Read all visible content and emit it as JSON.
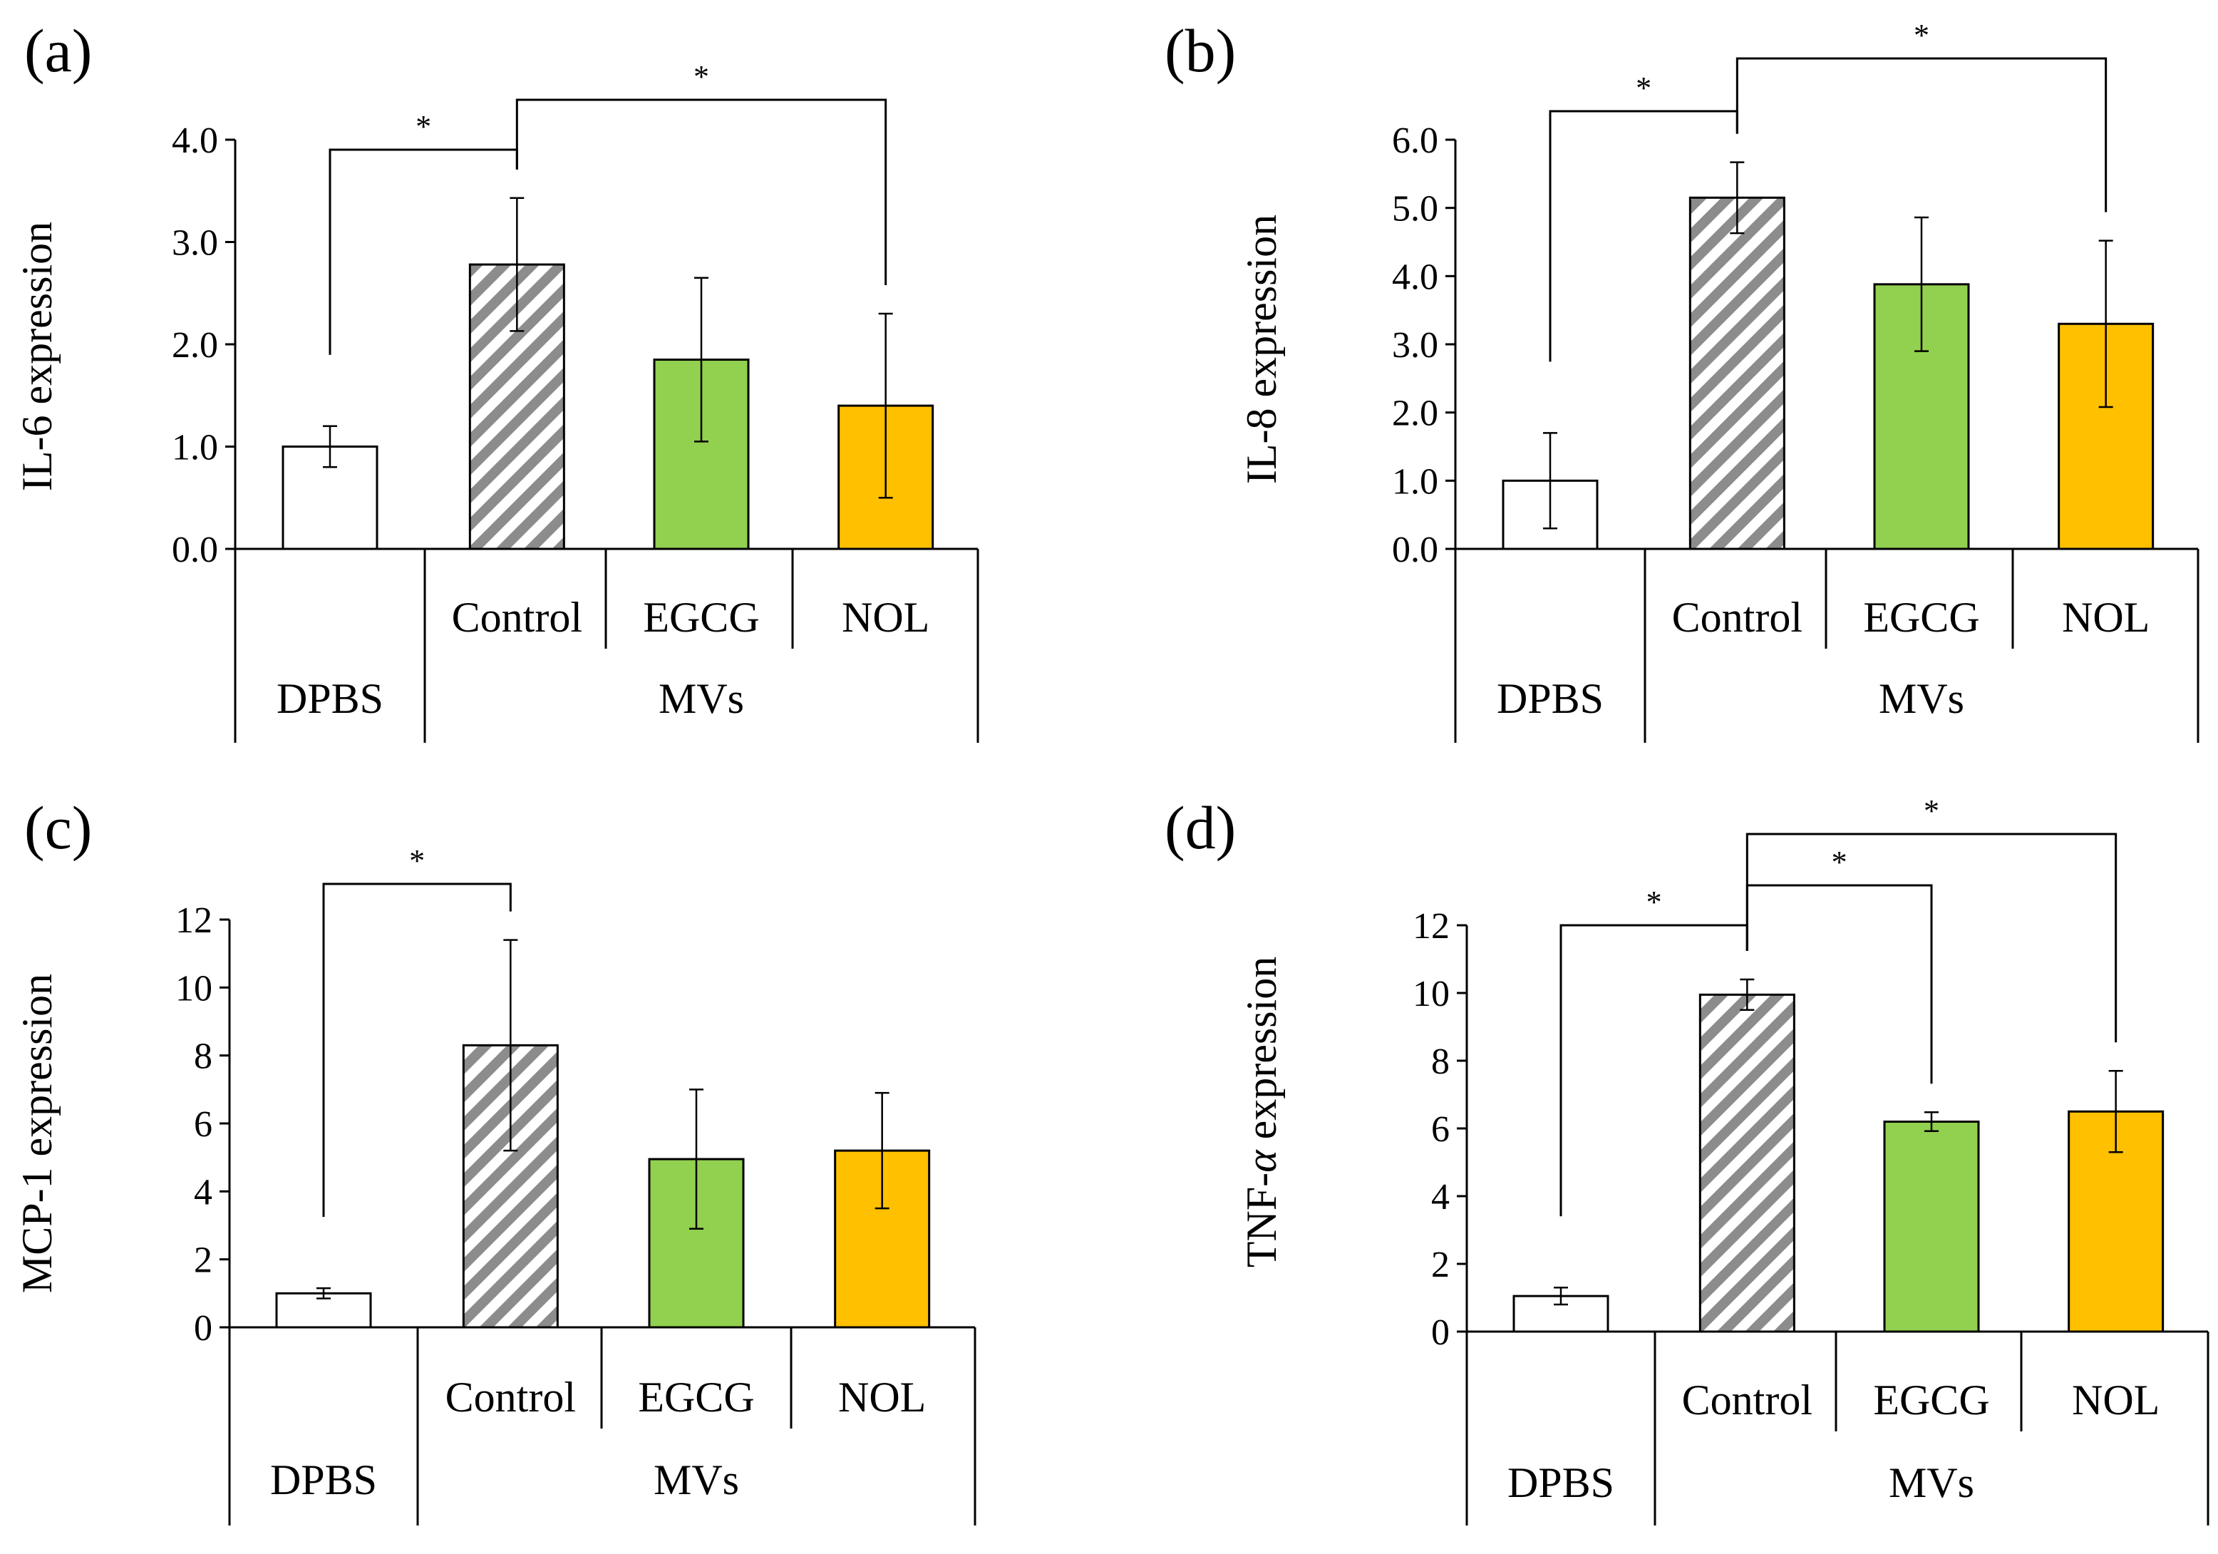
{
  "figure": {
    "colors": {
      "dpbs": "#ffffff",
      "control_hatch": "#8c8c8c",
      "egcg": "#92d050",
      "nol": "#ffc000",
      "stroke": "#000000"
    }
  },
  "chart_data": [
    {
      "type": "bar",
      "panel_label": "(a)",
      "ylabel": "IL-6 expression",
      "ylim": [
        0,
        4
      ],
      "yticks": [
        0,
        1,
        2,
        3,
        4
      ],
      "ytick_labels": [
        "0.0",
        "1.0",
        "2.0",
        "3.0",
        "4.0"
      ],
      "categories": [
        "DPBS",
        "Control",
        "EGCG",
        "NOL"
      ],
      "groups": [
        {
          "label": "DPBS",
          "members": [
            "DPBS"
          ]
        },
        {
          "label": "MVs",
          "members": [
            "Control",
            "EGCG",
            "NOL"
          ]
        }
      ],
      "values": [
        1.0,
        2.78,
        1.85,
        1.4
      ],
      "errors": [
        0.2,
        0.65,
        0.8,
        0.9
      ],
      "significance": [
        {
          "from": "DPBS",
          "to": "Control",
          "label": "*"
        },
        {
          "from": "Control",
          "to": "NOL",
          "label": "*"
        }
      ]
    },
    {
      "type": "bar",
      "panel_label": "(b)",
      "ylabel": "IL-8 expression",
      "ylim": [
        0,
        6
      ],
      "yticks": [
        0,
        1,
        2,
        3,
        4,
        5,
        6
      ],
      "ytick_labels": [
        "0.0",
        "1.0",
        "2.0",
        "3.0",
        "4.0",
        "5.0",
        "6.0"
      ],
      "categories": [
        "DPBS",
        "Control",
        "EGCG",
        "NOL"
      ],
      "groups": [
        {
          "label": "DPBS",
          "members": [
            "DPBS"
          ]
        },
        {
          "label": "MVs",
          "members": [
            "Control",
            "EGCG",
            "NOL"
          ]
        }
      ],
      "values": [
        1.0,
        5.15,
        3.88,
        3.3
      ],
      "errors": [
        0.7,
        0.52,
        0.98,
        1.22
      ],
      "significance": [
        {
          "from": "DPBS",
          "to": "Control",
          "label": "*"
        },
        {
          "from": "Control",
          "to": "NOL",
          "label": "*"
        }
      ]
    },
    {
      "type": "bar",
      "panel_label": "(c)",
      "ylabel": "MCP-1 expression",
      "ylim": [
        0,
        12
      ],
      "yticks": [
        0,
        2,
        4,
        6,
        8,
        10,
        12
      ],
      "ytick_labels": [
        "0",
        "2",
        "4",
        "6",
        "8",
        "10",
        "12"
      ],
      "categories": [
        "DPBS",
        "Control",
        "EGCG",
        "NOL"
      ],
      "groups": [
        {
          "label": "DPBS",
          "members": [
            "DPBS"
          ]
        },
        {
          "label": "MVs",
          "members": [
            "Control",
            "EGCG",
            "NOL"
          ]
        }
      ],
      "values": [
        1.0,
        8.3,
        4.95,
        5.2
      ],
      "errors": [
        0.15,
        3.1,
        2.05,
        1.7
      ],
      "significance": [
        {
          "from": "DPBS",
          "to": "Control",
          "label": "*"
        }
      ]
    },
    {
      "type": "bar",
      "panel_label": "(d)",
      "ylabel": "TNF-α expression",
      "ylabel_main": "TNF-",
      "ylabel_symbol": "α",
      "ylabel_rest": " expression",
      "ylim": [
        0,
        12
      ],
      "yticks": [
        0,
        2,
        4,
        6,
        8,
        10,
        12
      ],
      "ytick_labels": [
        "0",
        "2",
        "4",
        "6",
        "8",
        "10",
        "12"
      ],
      "categories": [
        "DPBS",
        "Control",
        "EGCG",
        "NOL"
      ],
      "groups": [
        {
          "label": "DPBS",
          "members": [
            "DPBS"
          ]
        },
        {
          "label": "MVs",
          "members": [
            "Control",
            "EGCG",
            "NOL"
          ]
        }
      ],
      "values": [
        1.05,
        9.95,
        6.2,
        6.5
      ],
      "errors": [
        0.25,
        0.45,
        0.28,
        1.2
      ],
      "significance": [
        {
          "from": "DPBS",
          "to": "Control",
          "label": "*"
        },
        {
          "from": "Control",
          "to": "EGCG",
          "label": "*"
        },
        {
          "from": "Control",
          "to": "NOL",
          "label": "*"
        }
      ]
    }
  ]
}
